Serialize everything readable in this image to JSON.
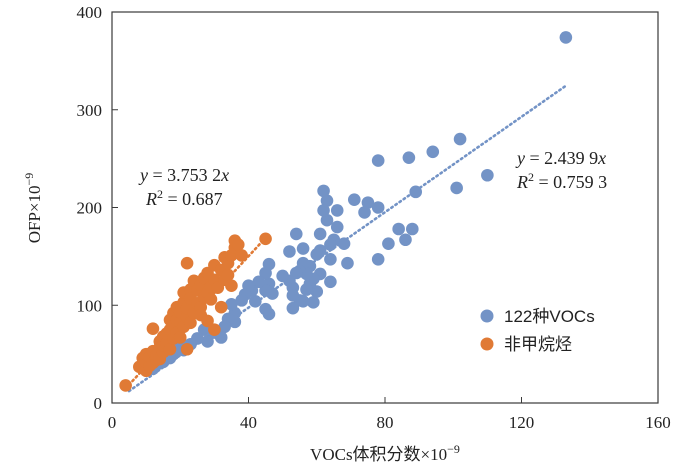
{
  "chart_data": {
    "type": "scatter",
    "title": "",
    "xlabel": "VOCs体积分数×10",
    "xlabel_exp": "−9",
    "ylabel": "OFP×10",
    "ylabel_exp": "−9",
    "xlim": [
      0,
      160
    ],
    "ylim": [
      0,
      400
    ],
    "xticks": [
      0,
      40,
      80,
      120,
      160
    ],
    "yticks": [
      0,
      100,
      200,
      300,
      400
    ],
    "grid": false,
    "legend_position": "bottom-right",
    "series": [
      {
        "name": "122种VOCs",
        "color": "#7393c6",
        "trendline": {
          "slope": 2.4399,
          "x_range": [
            5,
            133
          ]
        },
        "equation": {
          "y": "y",
          "eq": " = 2.439 9",
          "x": "x",
          "r2_lead": "R",
          "r2_exp": "2",
          "r2_val": " = 0.759 3"
        },
        "points": [
          [
            133,
            374
          ],
          [
            110,
            233
          ],
          [
            102,
            270
          ],
          [
            101,
            220
          ],
          [
            94,
            257
          ],
          [
            89,
            216
          ],
          [
            88,
            178
          ],
          [
            87,
            251
          ],
          [
            86,
            167
          ],
          [
            84,
            178
          ],
          [
            81,
            163
          ],
          [
            78,
            248
          ],
          [
            78,
            200
          ],
          [
            78,
            147
          ],
          [
            75,
            205
          ],
          [
            74,
            195
          ],
          [
            71,
            208
          ],
          [
            69,
            143
          ],
          [
            68,
            163
          ],
          [
            66,
            197
          ],
          [
            66,
            180
          ],
          [
            65,
            167
          ],
          [
            64,
            162
          ],
          [
            64,
            147
          ],
          [
            64,
            124
          ],
          [
            63,
            207
          ],
          [
            63,
            187
          ],
          [
            62,
            217
          ],
          [
            62,
            197
          ],
          [
            61,
            173
          ],
          [
            61,
            156
          ],
          [
            61,
            132
          ],
          [
            60,
            152
          ],
          [
            60,
            114
          ],
          [
            59,
            103
          ],
          [
            59,
            127
          ],
          [
            58,
            122
          ],
          [
            58,
            140
          ],
          [
            57,
            132
          ],
          [
            57,
            116
          ],
          [
            56,
            104
          ],
          [
            56,
            158
          ],
          [
            56,
            143
          ],
          [
            55,
            135
          ],
          [
            55,
            105
          ],
          [
            54,
            173
          ],
          [
            54,
            133
          ],
          [
            53,
            118
          ],
          [
            53,
            110
          ],
          [
            53,
            97
          ],
          [
            52,
            155
          ],
          [
            52,
            125
          ],
          [
            50,
            130
          ],
          [
            47,
            112
          ],
          [
            46,
            142
          ],
          [
            46,
            122
          ],
          [
            46,
            91
          ],
          [
            45,
            133
          ],
          [
            45,
            115
          ],
          [
            45,
            96
          ],
          [
            43,
            124
          ],
          [
            42,
            104
          ],
          [
            41,
            115
          ],
          [
            40,
            120
          ],
          [
            39,
            111
          ],
          [
            38,
            105
          ],
          [
            36,
            92
          ],
          [
            36,
            83
          ],
          [
            35,
            101
          ],
          [
            34,
            86
          ],
          [
            33,
            78
          ],
          [
            32,
            67
          ],
          [
            30,
            72
          ],
          [
            28,
            63
          ],
          [
            27,
            75
          ],
          [
            25,
            66
          ],
          [
            23,
            60
          ],
          [
            21,
            54
          ],
          [
            20,
            58
          ],
          [
            18,
            50
          ],
          [
            17,
            46
          ],
          [
            15,
            42
          ],
          [
            13,
            39
          ],
          [
            12,
            35
          ]
        ]
      },
      {
        "name": "非甲烷烃",
        "color": "#e07a35",
        "trendline": {
          "slope": 3.7532,
          "x_range": [
            5,
            45
          ]
        },
        "equation": {
          "y": "y",
          "eq": " = 3.753 2",
          "x": "x",
          "r2_lead": "R",
          "r2_exp": "2",
          "r2_val": " = 0.687"
        },
        "points": [
          [
            4,
            18
          ],
          [
            8,
            37
          ],
          [
            9,
            40
          ],
          [
            9,
            46
          ],
          [
            10,
            33
          ],
          [
            10,
            42
          ],
          [
            10,
            50
          ],
          [
            11,
            38
          ],
          [
            11,
            47
          ],
          [
            12,
            53
          ],
          [
            12,
            41
          ],
          [
            12,
            76
          ],
          [
            13,
            44
          ],
          [
            13,
            49
          ],
          [
            14,
            45
          ],
          [
            14,
            57
          ],
          [
            14,
            63
          ],
          [
            15,
            52
          ],
          [
            15,
            59
          ],
          [
            15,
            68
          ],
          [
            16,
            61
          ],
          [
            16,
            71
          ],
          [
            17,
            55
          ],
          [
            17,
            75
          ],
          [
            17,
            85
          ],
          [
            18,
            66
          ],
          [
            18,
            92
          ],
          [
            18,
            79
          ],
          [
            19,
            72
          ],
          [
            19,
            98
          ],
          [
            19,
            85
          ],
          [
            20,
            83
          ],
          [
            20,
            93
          ],
          [
            20,
            67
          ],
          [
            21,
            103
          ],
          [
            21,
            113
          ],
          [
            21,
            78
          ],
          [
            22,
            143
          ],
          [
            22,
            88
          ],
          [
            22,
            97
          ],
          [
            22,
            55
          ],
          [
            23,
            116
          ],
          [
            23,
            107
          ],
          [
            23,
            82
          ],
          [
            24,
            92
          ],
          [
            24,
            125
          ],
          [
            25,
            102
          ],
          [
            25,
            115
          ],
          [
            26,
            121
          ],
          [
            26,
            98
          ],
          [
            26,
            90
          ],
          [
            27,
            108
          ],
          [
            27,
            128
          ],
          [
            28,
            133
          ],
          [
            28,
            113
          ],
          [
            28,
            84
          ],
          [
            29,
            106
          ],
          [
            29,
            119
          ],
          [
            30,
            141
          ],
          [
            30,
            126
          ],
          [
            30,
            75
          ],
          [
            31,
            118
          ],
          [
            32,
            136
          ],
          [
            32,
            98
          ],
          [
            33,
            126
          ],
          [
            33,
            149
          ],
          [
            34,
            131
          ],
          [
            34,
            143
          ],
          [
            35,
            120
          ],
          [
            35,
            151
          ],
          [
            36,
            159
          ],
          [
            36,
            166
          ],
          [
            37,
            162
          ],
          [
            38,
            151
          ],
          [
            45,
            168
          ]
        ]
      }
    ]
  }
}
